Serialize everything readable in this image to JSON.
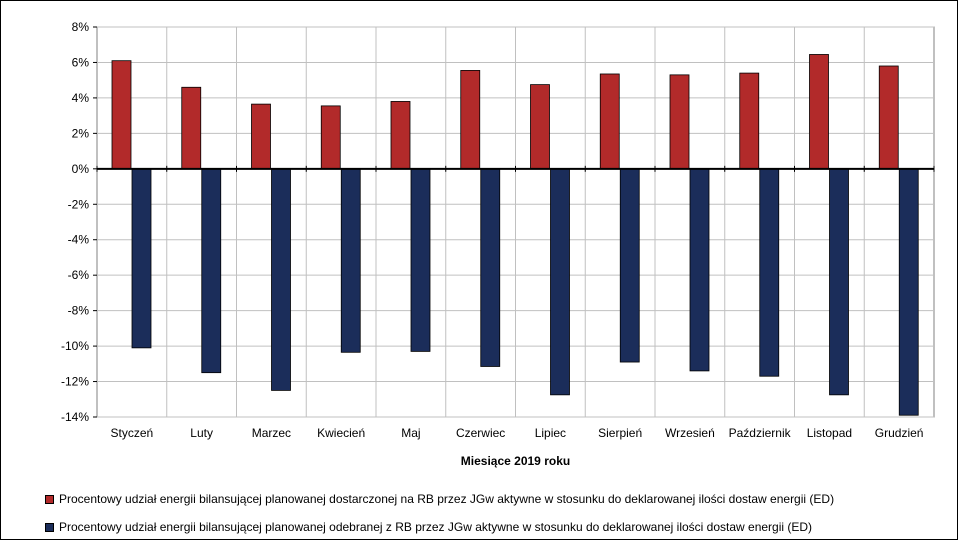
{
  "chart_data": {
    "type": "bar",
    "categories": [
      "Styczeń",
      "Luty",
      "Marzec",
      "Kwiecień",
      "Maj",
      "Czerwiec",
      "Lipiec",
      "Sierpień",
      "Wrzesień",
      "Październik",
      "Listopad",
      "Grudzień"
    ],
    "series": [
      {
        "name": "Procentowy udział energii bilansującej planowanej dostarczonej na RB przez JGw aktywne w stosunku do deklarowanej ilości dostaw energii (ED)",
        "color": "#B22A2A",
        "values": [
          6.1,
          4.6,
          3.65,
          3.55,
          3.8,
          5.55,
          4.75,
          5.35,
          5.3,
          5.4,
          6.45,
          5.8
        ]
      },
      {
        "name": "Procentowy udział energii bilansującej planowanej odebranej z RB przez JGw aktywne w stosunku do deklarowanej ilości dostaw energii (ED)",
        "color": "#1B2D5A",
        "values": [
          -10.1,
          -11.5,
          -12.5,
          -10.35,
          -10.3,
          -11.15,
          -12.75,
          -10.9,
          -11.4,
          -11.7,
          -12.75,
          -13.9
        ]
      }
    ],
    "xlabel": "Miesiące 2019  roku",
    "ylabel": "",
    "ylim": [
      -14,
      8
    ],
    "yticks": [
      "8%",
      "6%",
      "4%",
      "2%",
      "0%",
      "-2%",
      "-4%",
      "-6%",
      "-8%",
      "-10%",
      "-12%",
      "-14%"
    ],
    "grid": true,
    "legend_position": "bottom"
  }
}
